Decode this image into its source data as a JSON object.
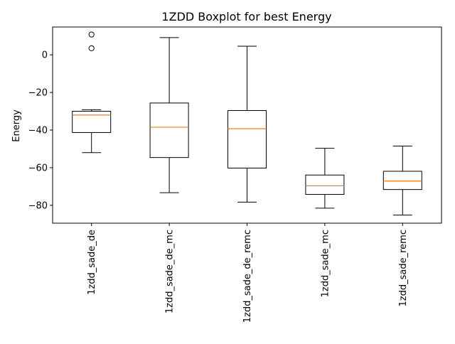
{
  "chart_data": {
    "type": "boxplot",
    "title": "1ZDD Boxplot for best Energy",
    "xlabel": "",
    "ylabel": "Energy",
    "ylim": [
      -89.5,
      14.8
    ],
    "yticks": [
      -80,
      -60,
      -40,
      -20,
      0
    ],
    "ytick_labels": [
      "−80",
      "−60",
      "−40",
      "−20",
      "0"
    ],
    "grid": false,
    "categories": [
      "1zdd_sade_de",
      "1zdd_sade_de_mc",
      "1zdd_sade_de_remc",
      "1zdd_sade_mc",
      "1zdd_sade_remc"
    ],
    "boxes": [
      {
        "whisker_low": -52,
        "q1": -41.3,
        "median": -32,
        "q3": -30,
        "whisker_high": -29.2,
        "fliers": [
          3.5,
          10.8
        ]
      },
      {
        "whisker_low": -73.3,
        "q1": -54.6,
        "median": -38.5,
        "q3": -25.6,
        "whisker_high": 9.2,
        "fliers": []
      },
      {
        "whisker_low": -78.3,
        "q1": -60.2,
        "median": -39.3,
        "q3": -29.6,
        "whisker_high": 4.6,
        "fliers": []
      },
      {
        "whisker_low": -81.5,
        "q1": -74.2,
        "median": -69.6,
        "q3": -63.9,
        "whisker_high": -49.7,
        "fliers": []
      },
      {
        "whisker_low": -85.2,
        "q1": -71.6,
        "median": -67.1,
        "q3": -61.9,
        "whisker_high": -48.5,
        "fliers": []
      }
    ],
    "colors": {
      "box": "#000000",
      "median": "#ff7f0e",
      "background": "#ffffff"
    }
  }
}
